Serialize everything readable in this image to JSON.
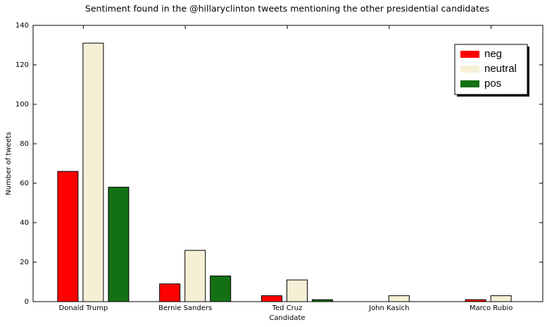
{
  "chart_data": {
    "type": "bar",
    "title": "Sentiment found in the @hillaryclinton tweets mentioning the other presidential candidates",
    "x_label": "Candidate",
    "y_label": "Number of tweets",
    "categories": [
      "Donald Trump",
      "Bernie Sanders",
      "Ted Cruz",
      "John Kasich",
      "Marco Rubio"
    ],
    "series": [
      {
        "name": "neg",
        "color": "#ff0000",
        "values": [
          66,
          9,
          3,
          0,
          1
        ]
      },
      {
        "name": "neutral",
        "color": "#f5f0d5",
        "values": [
          131,
          26,
          11,
          3,
          3
        ]
      },
      {
        "name": "pos",
        "color": "#137113",
        "values": [
          58,
          13,
          1,
          0,
          0
        ]
      }
    ],
    "ylim": [
      0,
      140
    ],
    "yticks": [
      0,
      20,
      40,
      60,
      80,
      100,
      120,
      140
    ],
    "grid": false,
    "legend_position": "upper right"
  }
}
